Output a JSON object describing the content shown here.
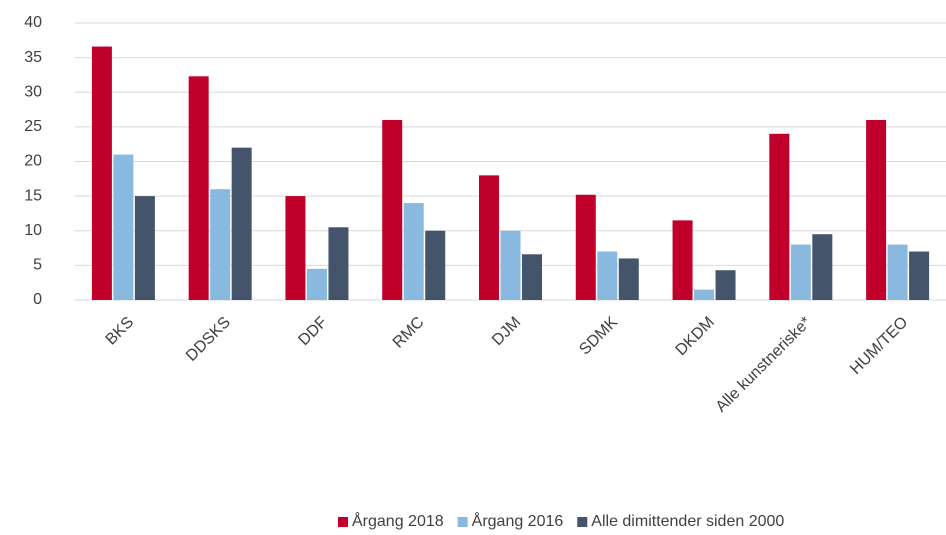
{
  "chart_data": {
    "type": "bar",
    "categories": [
      "BKS",
      "DDSKS",
      "DDF",
      "RMC",
      "DJM",
      "SDMK",
      "DKDM",
      "Alle kunstneriske*",
      "HUM/TEO"
    ],
    "series": [
      {
        "name": "Årgang 2018",
        "color": "#c0002a",
        "values": [
          36.6,
          32.3,
          15,
          26,
          18,
          15.2,
          11.5,
          24,
          26
        ]
      },
      {
        "name": "Årgang 2016",
        "color": "#8ab9df",
        "values": [
          21,
          16,
          4.5,
          14,
          10,
          7,
          1.5,
          8,
          8
        ]
      },
      {
        "name": "Alle dimittender siden 2000",
        "color": "#44546a",
        "values": [
          15,
          22,
          10.5,
          10,
          6.6,
          6,
          4.3,
          9.5,
          7
        ]
      }
    ],
    "ylim": [
      0,
      40
    ],
    "yticks": [
      0,
      5,
      10,
      15,
      20,
      25,
      30,
      35,
      40
    ],
    "grid": true,
    "legend": "bottom"
  }
}
